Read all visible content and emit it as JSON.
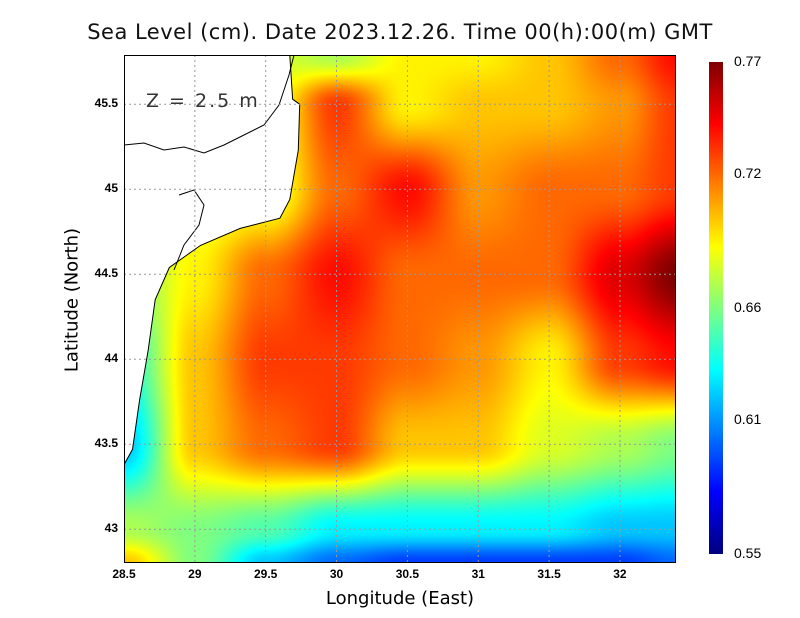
{
  "chart_data": {
    "type": "heatmap",
    "title": "Sea Level (cm). Date 2023.12.26. Time 00(h):00(m) GMT",
    "xlabel": "Longitude (East)",
    "ylabel": "Latitude (North)",
    "annotation": "Z = 2.5 m",
    "xlim": [
      28.5,
      32.4
    ],
    "ylim": [
      42.8,
      45.79
    ],
    "xticks": [
      "28.5",
      "29",
      "29.5",
      "30",
      "30.5",
      "31",
      "31.5",
      "32"
    ],
    "yticks": [
      "43",
      "43.5",
      "44",
      "44.5",
      "45",
      "45.5"
    ],
    "colorbar": {
      "range": [
        0.55,
        0.77
      ],
      "ticks": [
        "0.55",
        "0.61",
        "0.66",
        "0.72",
        "0.77"
      ]
    },
    "grid": true,
    "lon_nodes": [
      28.5,
      29,
      29.5,
      30,
      30.5,
      31,
      31.5,
      32,
      32.4
    ],
    "lat_nodes": [
      45.79,
      45.5,
      45,
      44.5,
      44,
      43.5,
      43,
      42.8
    ],
    "values": [
      [
        0.68,
        0.68,
        0.68,
        0.67,
        0.69,
        0.69,
        0.7,
        0.72,
        0.74
      ],
      [
        0.68,
        0.68,
        0.68,
        0.73,
        0.69,
        0.7,
        0.7,
        0.71,
        0.73
      ],
      [
        0.68,
        0.68,
        0.68,
        0.72,
        0.74,
        0.71,
        0.72,
        0.72,
        0.73
      ],
      [
        0.66,
        0.69,
        0.72,
        0.74,
        0.72,
        0.72,
        0.72,
        0.75,
        0.77
      ],
      [
        0.64,
        0.7,
        0.73,
        0.73,
        0.72,
        0.71,
        0.69,
        0.73,
        0.74
      ],
      [
        0.62,
        0.7,
        0.72,
        0.73,
        0.7,
        0.7,
        0.68,
        0.67,
        0.66
      ],
      [
        0.67,
        0.66,
        0.65,
        0.63,
        0.63,
        0.63,
        0.63,
        0.62,
        0.62
      ],
      [
        0.7,
        0.66,
        0.62,
        0.6,
        0.59,
        0.59,
        0.59,
        0.59,
        0.6
      ]
    ],
    "coastline": [
      [
        29.67,
        45.79
      ],
      [
        29.69,
        45.53
      ],
      [
        29.74,
        45.5
      ],
      [
        29.73,
        45.23
      ],
      [
        29.67,
        44.94
      ],
      [
        29.6,
        44.83
      ],
      [
        29.32,
        44.77
      ],
      [
        29.04,
        44.67
      ],
      [
        28.82,
        44.54
      ],
      [
        28.72,
        44.35
      ],
      [
        28.67,
        44.05
      ],
      [
        28.61,
        43.76
      ],
      [
        28.56,
        43.47
      ],
      [
        28.5,
        43.38
      ]
    ]
  }
}
